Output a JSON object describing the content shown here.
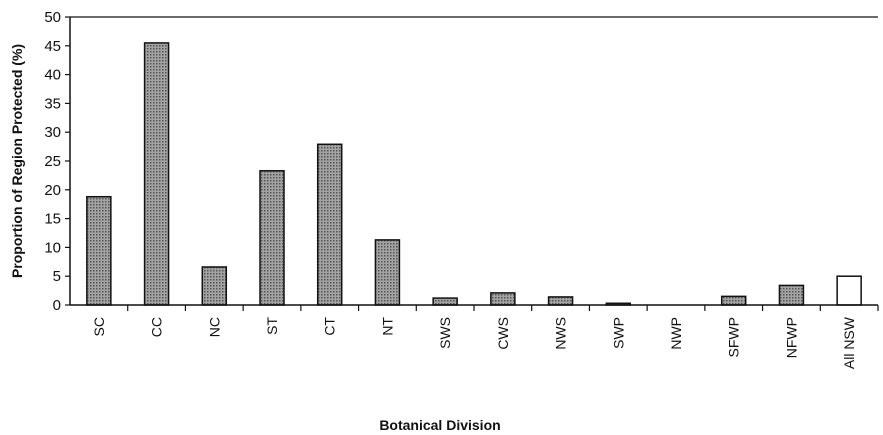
{
  "chart_data": {
    "type": "bar",
    "title": "",
    "xlabel": "Botanical Division",
    "ylabel": "Proportion of Region Protected (%)",
    "ylim": [
      0,
      50
    ],
    "yticks": [
      "0",
      "5",
      "10",
      "15",
      "20",
      "25",
      "30",
      "35",
      "40",
      "45",
      "50"
    ],
    "categories": [
      "SC",
      "CC",
      "NC",
      "ST",
      "CT",
      "NT",
      "SWS",
      "CWS",
      "NWS",
      "SWP",
      "NWP",
      "SFWP",
      "NFWP",
      "All NSW"
    ],
    "values": [
      18.8,
      45.5,
      6.6,
      23.3,
      27.9,
      11.3,
      1.2,
      2.1,
      1.4,
      0.3,
      0.0,
      1.5,
      3.4,
      5.0
    ],
    "grid": false,
    "colors": {
      "bar_fill": "#8a8a8a",
      "highlight_fill": "#ffffff",
      "stroke": "#111111"
    }
  }
}
